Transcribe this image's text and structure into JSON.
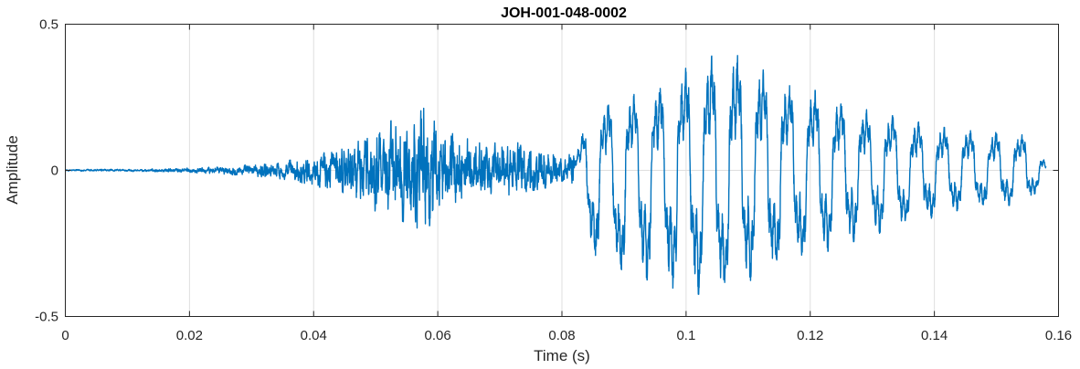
{
  "chart_data": {
    "type": "line",
    "title": "JOH-001-048-0002",
    "xlabel": "Time (s)",
    "ylabel": "Amplitude",
    "xlim": [
      0,
      0.16
    ],
    "ylim": [
      -0.5,
      0.5
    ],
    "grid": true,
    "x_ticks": [
      0,
      0.02,
      0.04,
      0.06,
      0.08,
      0.1,
      0.12,
      0.14,
      0.16
    ],
    "x_tick_labels": [
      "0",
      "0.02",
      "0.04",
      "0.06",
      "0.08",
      "0.1",
      "0.12",
      "0.14",
      "0.16"
    ],
    "y_ticks": [
      -0.5,
      0,
      0.5
    ],
    "y_tick_labels": [
      "-0.5",
      "0",
      "0.5"
    ],
    "signal_end_time": 0.158,
    "series": [
      {
        "color": "#0072bd",
        "envelope_t": [
          0,
          0.012,
          0.02,
          0.025,
          0.03,
          0.035,
          0.04,
          0.045,
          0.05,
          0.055,
          0.058,
          0.06,
          0.065,
          0.07,
          0.075,
          0.08,
          0.082,
          0.085,
          0.09,
          0.095,
          0.1,
          0.105,
          0.108,
          0.11,
          0.115,
          0.12,
          0.125,
          0.13,
          0.135,
          0.14,
          0.145,
          0.15,
          0.155,
          0.158
        ],
        "envelope_pos": [
          0.003,
          0.004,
          0.008,
          0.012,
          0.02,
          0.03,
          0.05,
          0.08,
          0.14,
          0.2,
          0.24,
          0.14,
          0.11,
          0.1,
          0.09,
          0.06,
          0.05,
          0.22,
          0.25,
          0.28,
          0.35,
          0.4,
          0.4,
          0.37,
          0.32,
          0.28,
          0.24,
          0.2,
          0.18,
          0.15,
          0.14,
          0.13,
          0.12,
          0.03
        ],
        "envelope_neg": [
          0.003,
          0.004,
          0.008,
          0.012,
          0.02,
          0.03,
          0.05,
          0.09,
          0.14,
          0.18,
          0.22,
          0.13,
          0.1,
          0.09,
          0.07,
          0.05,
          0.05,
          0.3,
          0.36,
          0.38,
          0.42,
          0.43,
          0.41,
          0.38,
          0.34,
          0.3,
          0.26,
          0.22,
          0.2,
          0.16,
          0.13,
          0.12,
          0.12,
          0.02
        ],
        "voiced_onset_time": 0.082,
        "fundamental_hz": 240
      }
    ]
  }
}
